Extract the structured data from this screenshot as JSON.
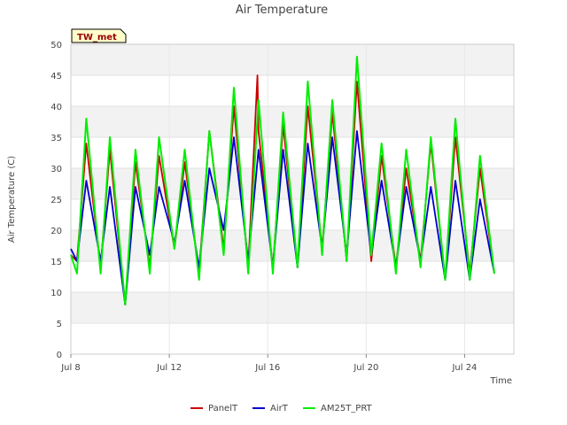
{
  "chart_data": {
    "type": "line",
    "title": "Air Temperature",
    "xlabel": "Time",
    "ylabel": "Air Temperature (C)",
    "site_label": "TW_met",
    "ylim": [
      0,
      50
    ],
    "yticks": [
      0,
      5,
      10,
      15,
      20,
      25,
      30,
      35,
      40,
      45,
      50
    ],
    "xlim": [
      "2019-07-08",
      "2019-07-26"
    ],
    "xticks": [
      {
        "date": "2019-07-08",
        "label": "Jul 8"
      },
      {
        "date": "2019-07-12",
        "label": "Jul 12"
      },
      {
        "date": "2019-07-16",
        "label": "Jul 16"
      },
      {
        "date": "2019-07-20",
        "label": "Jul 20"
      },
      {
        "date": "2019-07-24",
        "label": "Jul 24"
      }
    ],
    "grid": true,
    "legend_position": "bottom",
    "series": [
      {
        "name": "PanelT",
        "color": "#cc0000",
        "points": [
          [
            "2019-07-08 00:00",
            16
          ],
          [
            "2019-07-08 06:00",
            15
          ],
          [
            "2019-07-08 15:00",
            34
          ],
          [
            "2019-07-09 05:00",
            14
          ],
          [
            "2019-07-09 14:00",
            33
          ],
          [
            "2019-07-10 05:00",
            8
          ],
          [
            "2019-07-10 15:00",
            31
          ],
          [
            "2019-07-11 05:00",
            14
          ],
          [
            "2019-07-11 14:00",
            32
          ],
          [
            "2019-07-12 05:00",
            17
          ],
          [
            "2019-07-12 15:00",
            31
          ],
          [
            "2019-07-13 05:00",
            13
          ],
          [
            "2019-07-13 15:00",
            36
          ],
          [
            "2019-07-14 05:00",
            17
          ],
          [
            "2019-07-14 15:00",
            40
          ],
          [
            "2019-07-15 05:00",
            14
          ],
          [
            "2019-07-15 14:00",
            45
          ],
          [
            "2019-07-15 15:00",
            36
          ],
          [
            "2019-07-16 05:00",
            14
          ],
          [
            "2019-07-16 15:00",
            37
          ],
          [
            "2019-07-17 05:00",
            14
          ],
          [
            "2019-07-17 15:00",
            40
          ],
          [
            "2019-07-18 05:00",
            17
          ],
          [
            "2019-07-18 15:00",
            39
          ],
          [
            "2019-07-19 05:00",
            15
          ],
          [
            "2019-07-19 15:00",
            44
          ],
          [
            "2019-07-20 05:00",
            15
          ],
          [
            "2019-07-20 15:00",
            32
          ],
          [
            "2019-07-21 05:00",
            14
          ],
          [
            "2019-07-21 15:00",
            30
          ],
          [
            "2019-07-22 05:00",
            15
          ],
          [
            "2019-07-22 15:00",
            34
          ],
          [
            "2019-07-23 05:00",
            12
          ],
          [
            "2019-07-23 15:00",
            35
          ],
          [
            "2019-07-24 05:00",
            13
          ],
          [
            "2019-07-24 15:00",
            30
          ],
          [
            "2019-07-25 05:00",
            13
          ]
        ]
      },
      {
        "name": "AirT",
        "color": "#0000cc",
        "points": [
          [
            "2019-07-08 00:00",
            17
          ],
          [
            "2019-07-08 06:00",
            15
          ],
          [
            "2019-07-08 15:00",
            28
          ],
          [
            "2019-07-09 05:00",
            15
          ],
          [
            "2019-07-09 14:00",
            27
          ],
          [
            "2019-07-10 05:00",
            8
          ],
          [
            "2019-07-10 15:00",
            27
          ],
          [
            "2019-07-11 05:00",
            16
          ],
          [
            "2019-07-11 14:00",
            27
          ],
          [
            "2019-07-12 05:00",
            18
          ],
          [
            "2019-07-12 15:00",
            28
          ],
          [
            "2019-07-13 05:00",
            14
          ],
          [
            "2019-07-13 15:00",
            30
          ],
          [
            "2019-07-14 05:00",
            20
          ],
          [
            "2019-07-14 15:00",
            35
          ],
          [
            "2019-07-15 05:00",
            15
          ],
          [
            "2019-07-15 15:00",
            33
          ],
          [
            "2019-07-16 05:00",
            14
          ],
          [
            "2019-07-16 15:00",
            33
          ],
          [
            "2019-07-17 05:00",
            14
          ],
          [
            "2019-07-17 15:00",
            34
          ],
          [
            "2019-07-18 05:00",
            17
          ],
          [
            "2019-07-18 15:00",
            35
          ],
          [
            "2019-07-19 05:00",
            16
          ],
          [
            "2019-07-19 15:00",
            36
          ],
          [
            "2019-07-20 05:00",
            16
          ],
          [
            "2019-07-20 15:00",
            28
          ],
          [
            "2019-07-21 05:00",
            14
          ],
          [
            "2019-07-21 15:00",
            27
          ],
          [
            "2019-07-22 05:00",
            15
          ],
          [
            "2019-07-22 15:00",
            27
          ],
          [
            "2019-07-23 05:00",
            12
          ],
          [
            "2019-07-23 15:00",
            28
          ],
          [
            "2019-07-24 05:00",
            12
          ],
          [
            "2019-07-24 15:00",
            25
          ],
          [
            "2019-07-25 05:00",
            13
          ]
        ]
      },
      {
        "name": "AM25T_PRT",
        "color": "#00ee00",
        "points": [
          [
            "2019-07-08 00:00",
            16
          ],
          [
            "2019-07-08 06:00",
            13
          ],
          [
            "2019-07-08 15:00",
            38
          ],
          [
            "2019-07-09 05:00",
            13
          ],
          [
            "2019-07-09 14:00",
            35
          ],
          [
            "2019-07-10 05:00",
            8
          ],
          [
            "2019-07-10 15:00",
            33
          ],
          [
            "2019-07-11 05:00",
            13
          ],
          [
            "2019-07-11 14:00",
            35
          ],
          [
            "2019-07-12 05:00",
            17
          ],
          [
            "2019-07-12 15:00",
            33
          ],
          [
            "2019-07-13 05:00",
            12
          ],
          [
            "2019-07-13 15:00",
            36
          ],
          [
            "2019-07-14 05:00",
            16
          ],
          [
            "2019-07-14 15:00",
            43
          ],
          [
            "2019-07-15 05:00",
            13
          ],
          [
            "2019-07-15 15:00",
            41
          ],
          [
            "2019-07-16 05:00",
            13
          ],
          [
            "2019-07-16 15:00",
            39
          ],
          [
            "2019-07-17 05:00",
            14
          ],
          [
            "2019-07-17 15:00",
            44
          ],
          [
            "2019-07-18 05:00",
            16
          ],
          [
            "2019-07-18 15:00",
            41
          ],
          [
            "2019-07-19 05:00",
            15
          ],
          [
            "2019-07-19 15:00",
            48
          ],
          [
            "2019-07-20 05:00",
            16
          ],
          [
            "2019-07-20 15:00",
            34
          ],
          [
            "2019-07-21 05:00",
            13
          ],
          [
            "2019-07-21 15:00",
            33
          ],
          [
            "2019-07-22 05:00",
            14
          ],
          [
            "2019-07-22 15:00",
            35
          ],
          [
            "2019-07-23 05:00",
            12
          ],
          [
            "2019-07-23 15:00",
            38
          ],
          [
            "2019-07-24 05:00",
            12
          ],
          [
            "2019-07-24 15:00",
            32
          ],
          [
            "2019-07-25 05:00",
            13
          ]
        ]
      }
    ]
  }
}
